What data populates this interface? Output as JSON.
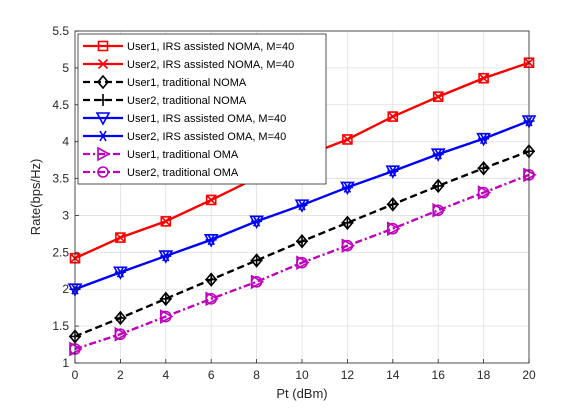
{
  "chart_data": {
    "type": "line",
    "title": "",
    "xlabel": "Pt (dBm)",
    "ylabel": "Rate(bps/Hz)",
    "xlim": [
      0,
      20
    ],
    "ylim": [
      1,
      5.5
    ],
    "grid": true,
    "legend_position": "top-left",
    "x": [
      0,
      2,
      4,
      6,
      8,
      10,
      12,
      14,
      16,
      18,
      20
    ],
    "x_ticks": [
      "0",
      "2",
      "4",
      "6",
      "8",
      "10",
      "12",
      "14",
      "16",
      "18",
      "20"
    ],
    "y_ticks": [
      "1",
      "1.5",
      "2",
      "2.5",
      "3",
      "3.5",
      "4",
      "4.5",
      "5",
      "5.5"
    ],
    "series": [
      {
        "name": "User1, IRS assisted NOMA, M=40",
        "color": "#ff0000",
        "marker": "square",
        "line_style": "solid",
        "values": [
          2.42,
          2.7,
          2.92,
          3.21,
          3.51,
          3.79,
          4.03,
          4.34,
          4.61,
          4.86,
          5.07
        ]
      },
      {
        "name": "User2, IRS assisted NOMA, M=40",
        "color": "#ff0000",
        "marker": "x",
        "line_style": "solid",
        "values": [
          2.42,
          2.7,
          2.92,
          3.21,
          3.51,
          3.79,
          4.03,
          4.34,
          4.61,
          4.86,
          5.07
        ]
      },
      {
        "name": "User1, traditional NOMA",
        "color": "#000000",
        "marker": "diamond",
        "line_style": "dashed",
        "values": [
          1.36,
          1.61,
          1.87,
          2.13,
          2.39,
          2.65,
          2.9,
          3.15,
          3.4,
          3.64,
          3.87
        ]
      },
      {
        "name": "User2, traditional NOMA",
        "color": "#000000",
        "marker": "plus",
        "line_style": "dashed",
        "values": [
          1.36,
          1.61,
          1.87,
          2.13,
          2.39,
          2.65,
          2.9,
          3.15,
          3.4,
          3.64,
          3.87
        ]
      },
      {
        "name": "User1, IRS assisted OMA, M=40",
        "color": "#0000ff",
        "marker": "triangle-down",
        "line_style": "solid",
        "values": [
          2.0,
          2.23,
          2.45,
          2.67,
          2.92,
          3.14,
          3.38,
          3.6,
          3.83,
          4.04,
          4.28
        ]
      },
      {
        "name": "User2, IRS assisted OMA, M=40",
        "color": "#0000ff",
        "marker": "asterisk",
        "line_style": "solid",
        "values": [
          2.0,
          2.23,
          2.45,
          2.67,
          2.92,
          3.14,
          3.38,
          3.6,
          3.83,
          4.04,
          4.28
        ]
      },
      {
        "name": "User1, traditional OMA",
        "color": "#bf00bf",
        "marker": "triangle-right",
        "line_style": "dashdot",
        "values": [
          1.19,
          1.39,
          1.63,
          1.87,
          2.1,
          2.36,
          2.59,
          2.82,
          3.07,
          3.31,
          3.55
        ]
      },
      {
        "name": "User2, traditional OMA",
        "color": "#bf00bf",
        "marker": "circle",
        "line_style": "dashdot",
        "values": [
          1.19,
          1.39,
          1.63,
          1.87,
          2.1,
          2.36,
          2.59,
          2.82,
          3.07,
          3.31,
          3.55
        ]
      }
    ]
  }
}
